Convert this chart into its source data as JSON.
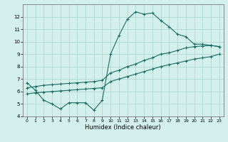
{
  "xlabel": "Humidex (Indice chaleur)",
  "ylabel": "",
  "bg_color": "#d4f0ec",
  "line_color": "#1a6b60",
  "grid_color": "#aed8d0",
  "xlim": [
    -0.5,
    23.5
  ],
  "ylim": [
    4,
    13
  ],
  "xticks": [
    0,
    1,
    2,
    3,
    4,
    5,
    6,
    7,
    8,
    9,
    10,
    11,
    12,
    13,
    14,
    15,
    16,
    17,
    18,
    19,
    20,
    21,
    22,
    23
  ],
  "yticks": [
    4,
    5,
    6,
    7,
    8,
    9,
    10,
    11,
    12
  ],
  "line1_x": [
    0,
    1,
    2,
    3,
    4,
    5,
    6,
    7,
    8,
    9,
    10,
    11,
    12,
    13,
    14,
    15,
    16,
    17,
    18,
    19,
    20,
    21,
    22,
    23
  ],
  "line1_y": [
    6.7,
    6.1,
    5.3,
    5.0,
    4.6,
    5.1,
    5.1,
    5.1,
    4.5,
    5.3,
    9.0,
    10.5,
    11.8,
    12.4,
    12.2,
    12.3,
    11.7,
    11.2,
    10.6,
    10.4,
    9.8,
    9.8,
    9.7,
    9.6
  ],
  "line2_x": [
    0,
    1,
    2,
    3,
    4,
    5,
    6,
    7,
    8,
    9,
    10,
    11,
    12,
    13,
    14,
    15,
    16,
    17,
    18,
    19,
    20,
    21,
    22,
    23
  ],
  "line2_y": [
    6.3,
    6.4,
    6.5,
    6.55,
    6.6,
    6.65,
    6.7,
    6.75,
    6.8,
    6.9,
    7.5,
    7.7,
    8.0,
    8.2,
    8.5,
    8.7,
    9.0,
    9.1,
    9.3,
    9.5,
    9.6,
    9.65,
    9.7,
    9.6
  ],
  "line3_x": [
    0,
    1,
    2,
    3,
    4,
    5,
    6,
    7,
    8,
    9,
    10,
    11,
    12,
    13,
    14,
    15,
    16,
    17,
    18,
    19,
    20,
    21,
    22,
    23
  ],
  "line3_y": [
    5.8,
    5.9,
    5.95,
    6.0,
    6.05,
    6.1,
    6.15,
    6.2,
    6.25,
    6.3,
    6.8,
    7.0,
    7.2,
    7.4,
    7.6,
    7.8,
    8.0,
    8.15,
    8.3,
    8.45,
    8.6,
    8.7,
    8.8,
    9.0
  ]
}
